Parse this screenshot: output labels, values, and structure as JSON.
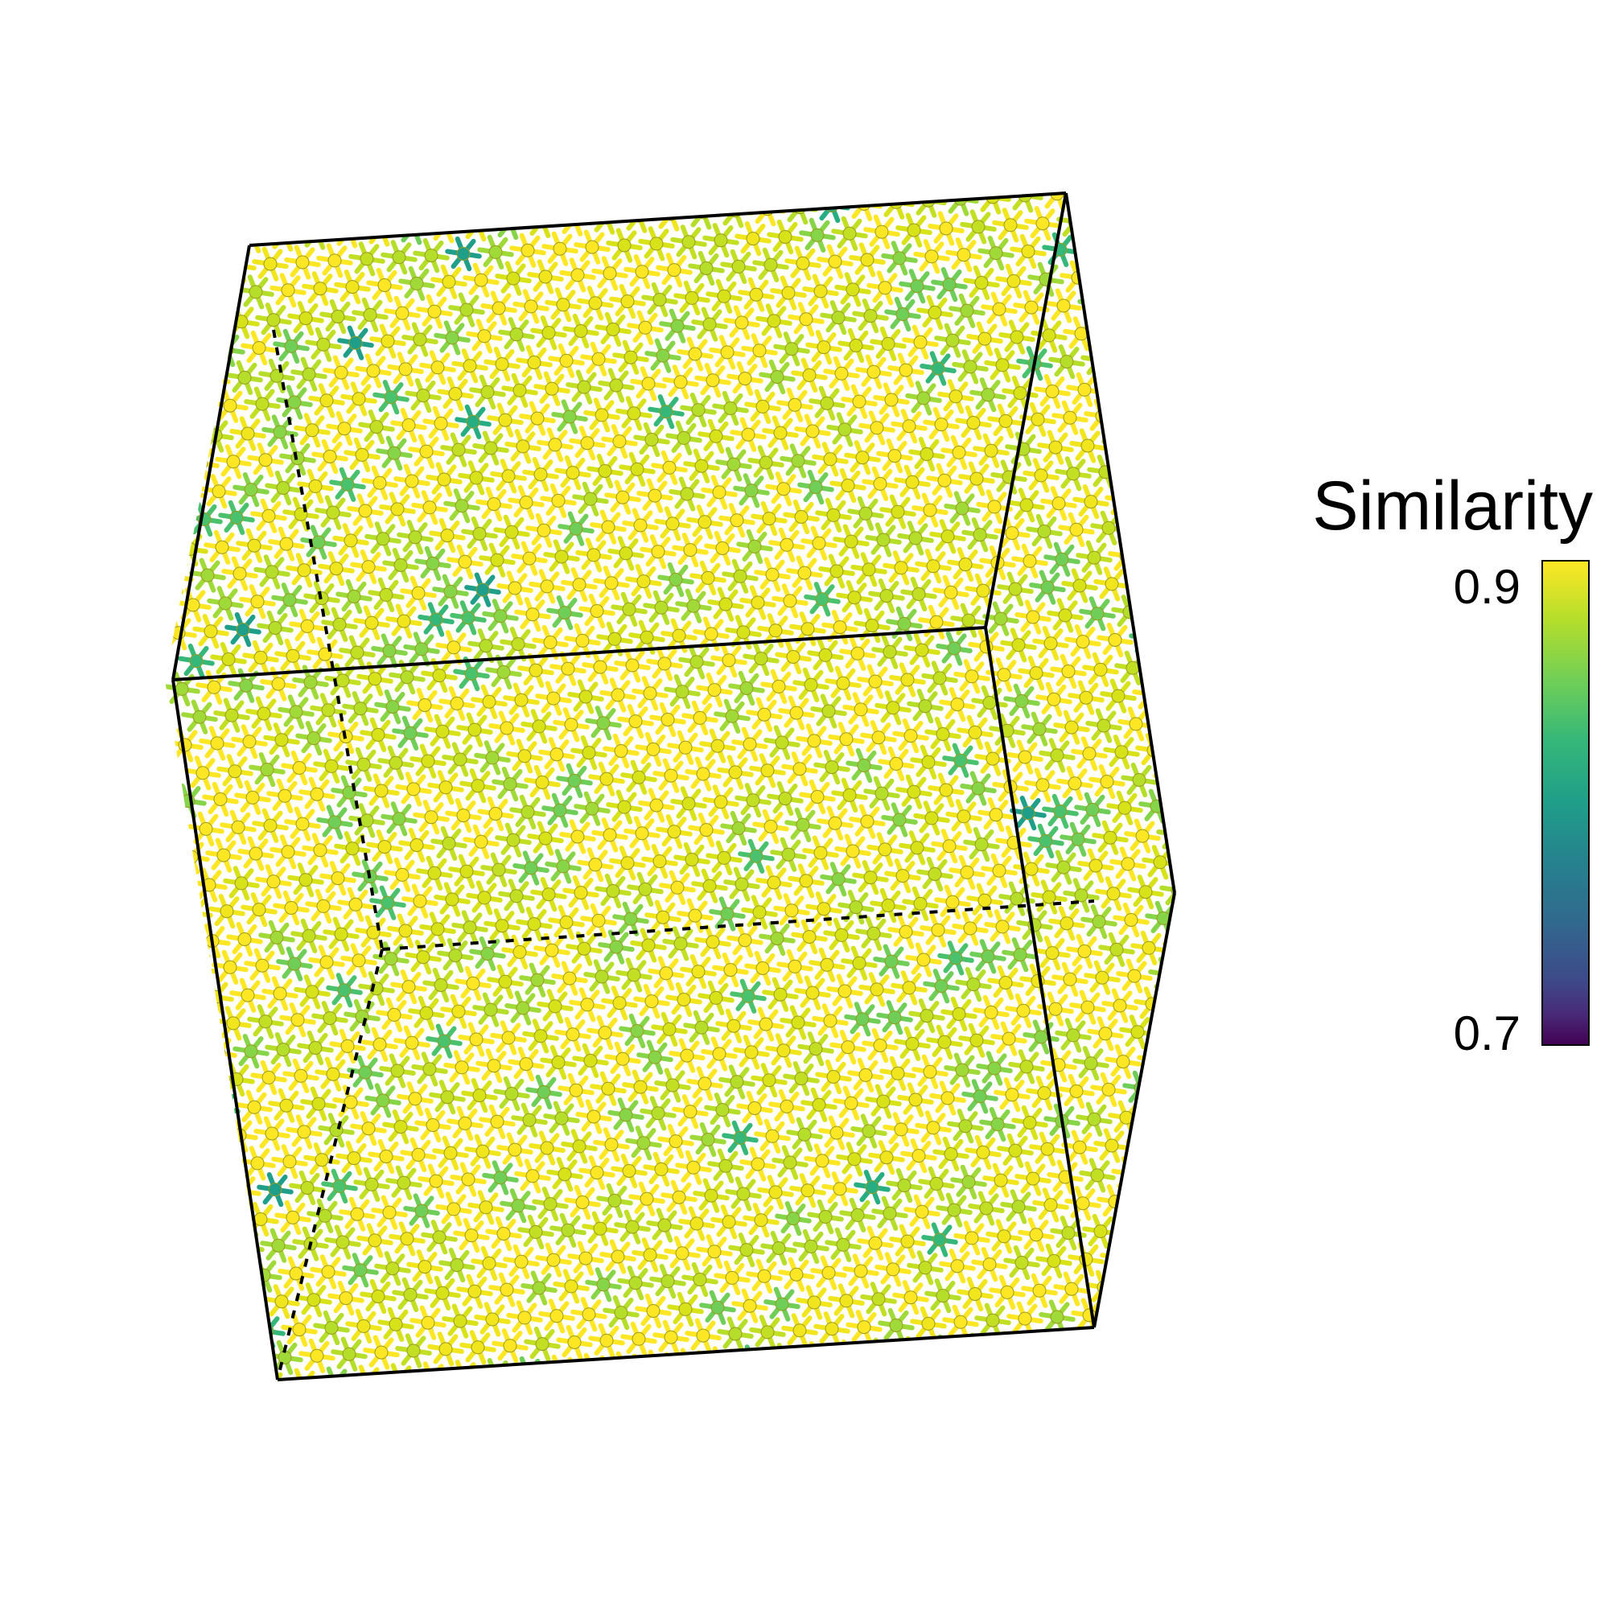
{
  "legend": {
    "title": "Similarity",
    "tick_max": "0.9",
    "tick_min": "0.7",
    "value_max": 0.9,
    "value_min": 0.7,
    "colormap": "viridis"
  },
  "colors": {
    "high": "#fde725",
    "mid_high": "#b5de2b",
    "mid": "#6ece58",
    "mid_low": "#35b779",
    "low_visible": "#1f9e89",
    "low": "#440154",
    "box_edge": "#000000"
  },
  "structure": {
    "description_visible": false,
    "dominant_similarity_range": [
      0.82,
      0.9
    ]
  }
}
